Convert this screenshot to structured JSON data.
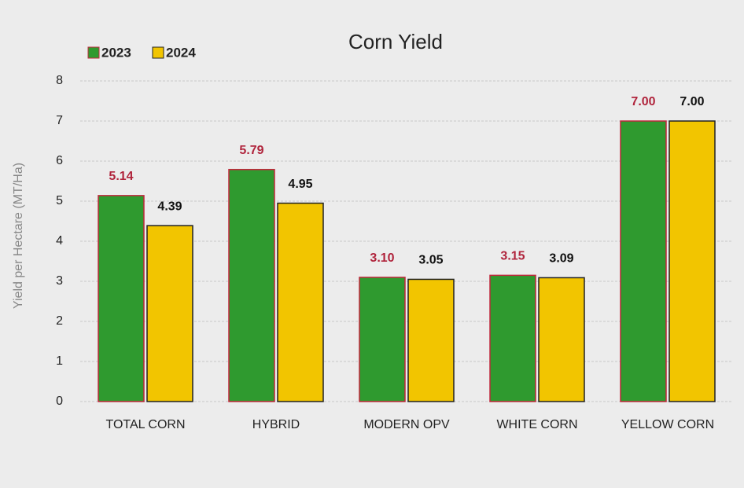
{
  "chart_data": {
    "type": "bar",
    "title": "Corn Yield",
    "y_label": "Yield per Hectare (MT/Ha)",
    "categories": [
      "TOTAL CORN",
      "HYBRID",
      "MODERN OPV",
      "WHITE CORN",
      "YELLOW CORN"
    ],
    "series": [
      {
        "name": "2023",
        "color": "#2f9a2f",
        "edge_color": "#c0283c",
        "label_color": "#b0243c",
        "values": [
          5.14,
          5.79,
          3.1,
          3.15,
          7.0
        ],
        "value_labels": [
          "5.14",
          "5.79",
          "3.10",
          "3.15",
          "7.00"
        ]
      },
      {
        "name": "2024",
        "color": "#f2c500",
        "edge_color": "#222222",
        "label_color": "#111111",
        "values": [
          4.39,
          4.95,
          3.05,
          3.09,
          7.0
        ],
        "value_labels": [
          "4.39",
          "4.95",
          "3.05",
          "3.09",
          "7.00"
        ]
      }
    ],
    "ylim": [
      0,
      8
    ],
    "yticks": [
      0,
      1,
      2,
      3,
      4,
      5,
      6,
      7,
      8
    ],
    "grid": true,
    "legend": "top-left"
  }
}
